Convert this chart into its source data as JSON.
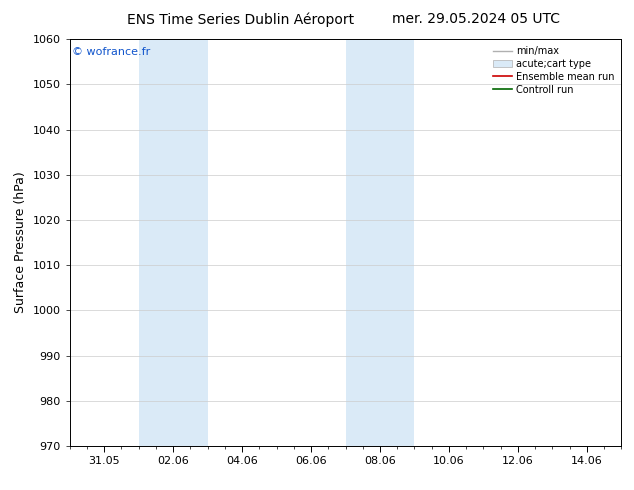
{
  "title_left": "ENS Time Series Dublin Aéroport",
  "title_right": "mer. 29.05.2024 05 UTC",
  "ylabel": "Surface Pressure (hPa)",
  "watermark": "© wofrance.fr",
  "ylim": [
    970,
    1060
  ],
  "yticks": [
    970,
    980,
    990,
    1000,
    1010,
    1020,
    1030,
    1040,
    1050,
    1060
  ],
  "xtick_labels": [
    "31.05",
    "02.06",
    "04.06",
    "06.06",
    "08.06",
    "10.06",
    "12.06",
    "14.06"
  ],
  "xtick_positions": [
    1,
    3,
    5,
    7,
    9,
    11,
    13,
    15
  ],
  "x_min": 0,
  "x_max": 16,
  "shaded_bands": [
    {
      "x_start": 2,
      "x_end": 4,
      "color": "#daeaf7"
    },
    {
      "x_start": 8,
      "x_end": 10,
      "color": "#daeaf7"
    }
  ],
  "legend_entries": [
    {
      "label": "min/max",
      "color": "#b0b0b0",
      "type": "line"
    },
    {
      "label": "acute;cart type",
      "color": "#b0b0b0",
      "type": "band"
    },
    {
      "label": "Ensemble mean run",
      "color": "#cc0000",
      "type": "line"
    },
    {
      "label": "Controll run",
      "color": "#006600",
      "type": "line"
    }
  ],
  "bg_color": "#ffffff",
  "plot_bg_color": "#ffffff",
  "grid_color": "#cccccc",
  "title_fontsize": 10,
  "tick_fontsize": 8,
  "ylabel_fontsize": 9
}
